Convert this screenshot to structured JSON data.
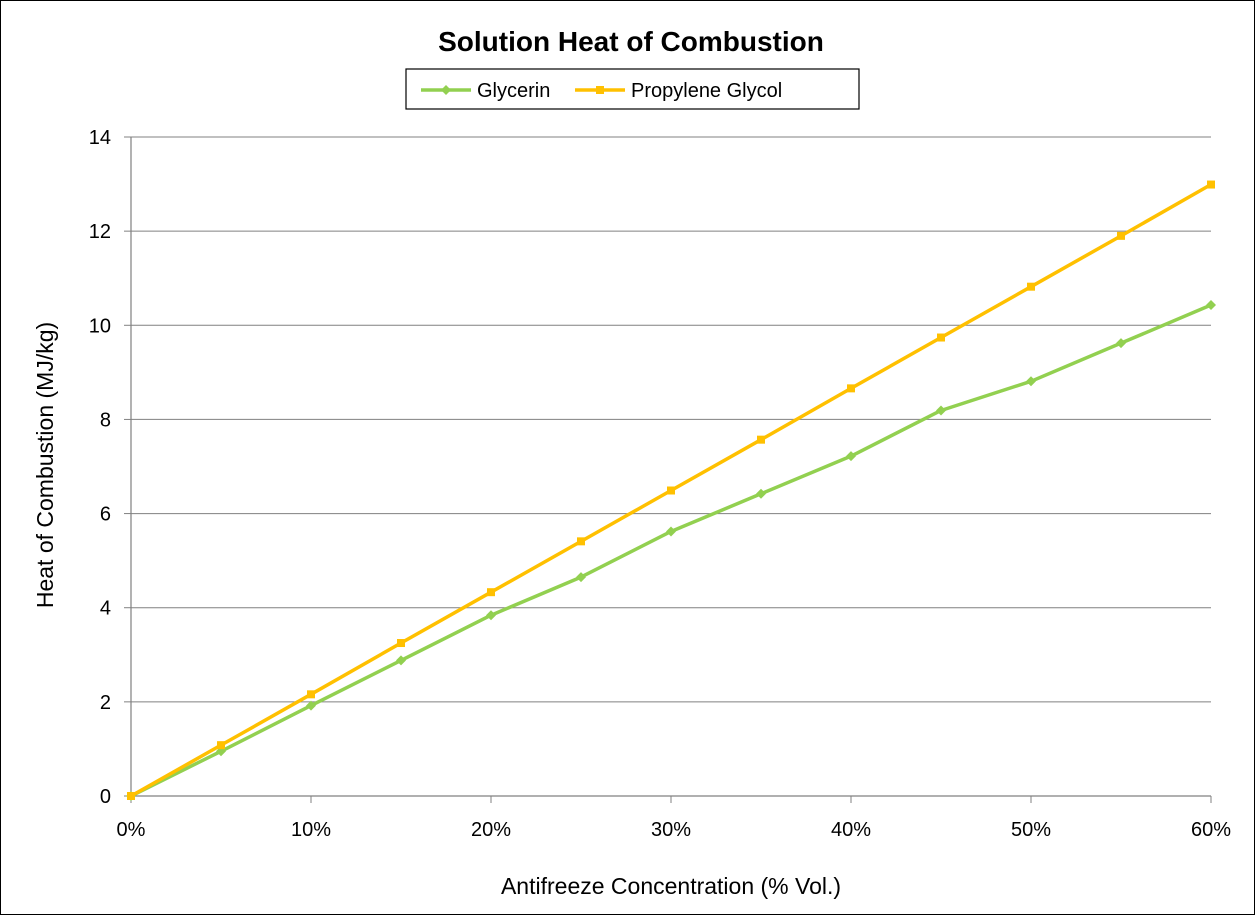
{
  "chart_data": {
    "type": "line",
    "title": "Solution Heat of Combustion",
    "xlabel": "Antifreeze Concentration (% Vol.)",
    "ylabel": "Heat of Combustion (MJ/kg)",
    "x": [
      0,
      5,
      10,
      15,
      20,
      25,
      30,
      35,
      40,
      45,
      50,
      55,
      60
    ],
    "x_tick_values": [
      0,
      10,
      20,
      30,
      40,
      50,
      60
    ],
    "x_tick_labels": [
      "0%",
      "10%",
      "20%",
      "30%",
      "40%",
      "50%",
      "60%"
    ],
    "xlim": [
      0,
      60
    ],
    "y_tick_values": [
      0,
      2,
      4,
      6,
      8,
      10,
      12,
      14
    ],
    "y_tick_labels": [
      "0",
      "2",
      "4",
      "6",
      "8",
      "10",
      "12",
      "14"
    ],
    "ylim": [
      0,
      14
    ],
    "grid": "horizontal",
    "legend_position": "top-center",
    "series": [
      {
        "name": "Glycerin",
        "color": "#92D050",
        "marker": "diamond",
        "values": [
          0,
          0.95,
          1.92,
          2.88,
          3.84,
          4.65,
          5.62,
          6.42,
          7.22,
          8.19,
          8.81,
          9.62,
          10.43
        ]
      },
      {
        "name": "Propylene Glycol",
        "color": "#FFC000",
        "marker": "square",
        "values": [
          0,
          1.08,
          2.16,
          3.25,
          4.33,
          5.41,
          6.49,
          7.57,
          8.66,
          9.74,
          10.82,
          11.9,
          12.99
        ]
      }
    ],
    "colors": {
      "gridline": "#808080",
      "axis": "#808080"
    }
  }
}
